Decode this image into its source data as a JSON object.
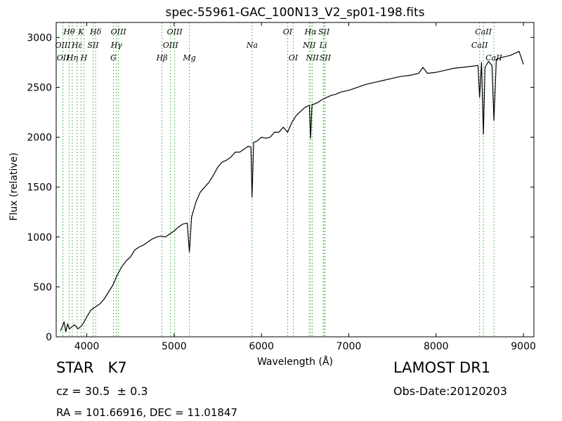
{
  "chart_data": {
    "type": "line",
    "title": "spec-55961-GAC_100N13_V2_sp01-198.fits",
    "xlabel": "Wavelength (Å)",
    "ylabel": "Flux (relative)",
    "xlim": [
      3650,
      9120
    ],
    "ylim": [
      0,
      3150
    ],
    "xticks": [
      4000,
      5000,
      6000,
      7000,
      8000,
      9000
    ],
    "yticks": [
      0,
      500,
      1000,
      1500,
      2000,
      2500,
      3000
    ],
    "grid": false,
    "line_color": "#000000",
    "marker_color": "#33aa33",
    "series": [
      {
        "x": [
          3700,
          3720,
          3740,
          3760,
          3780,
          3800,
          3830,
          3860,
          3900,
          3940,
          3970,
          4000,
          4050,
          4100,
          4150,
          4200,
          4250,
          4300,
          4350,
          4400,
          4450,
          4500,
          4550,
          4600,
          4650,
          4700,
          4750,
          4800,
          4850,
          4900,
          4950,
          5000,
          5050,
          5100,
          5150,
          5175,
          5200,
          5250,
          5300,
          5350,
          5400,
          5450,
          5500,
          5550,
          5600,
          5650,
          5700,
          5750,
          5800,
          5850,
          5880,
          5893,
          5910,
          5950,
          6000,
          6050,
          6100,
          6150,
          6200,
          6250,
          6300,
          6350,
          6400,
          6450,
          6500,
          6550,
          6563,
          6580,
          6600,
          6650,
          6700,
          6750,
          6800,
          6850,
          6900,
          6950,
          7000,
          7100,
          7200,
          7300,
          7400,
          7500,
          7600,
          7700,
          7800,
          7850,
          7900,
          8000,
          8100,
          8200,
          8300,
          8400,
          8480,
          8498,
          8520,
          8542,
          8560,
          8600,
          8640,
          8662,
          8690,
          8750,
          8800,
          8850,
          8900,
          8950,
          9000
        ],
        "y": [
          60,
          100,
          150,
          50,
          130,
          80,
          100,
          120,
          80,
          110,
          150,
          200,
          270,
          300,
          330,
          380,
          450,
          520,
          620,
          700,
          760,
          800,
          870,
          900,
          920,
          950,
          980,
          1000,
          1010,
          1000,
          1030,
          1060,
          1100,
          1130,
          1140,
          850,
          1200,
          1350,
          1450,
          1500,
          1550,
          1620,
          1700,
          1750,
          1770,
          1800,
          1850,
          1850,
          1880,
          1910,
          1900,
          1400,
          1950,
          1960,
          2000,
          1990,
          2000,
          2050,
          2050,
          2100,
          2050,
          2150,
          2220,
          2260,
          2300,
          2320,
          1990,
          2330,
          2330,
          2350,
          2380,
          2400,
          2420,
          2430,
          2450,
          2460,
          2470,
          2500,
          2530,
          2550,
          2570,
          2590,
          2610,
          2620,
          2640,
          2700,
          2640,
          2650,
          2670,
          2690,
          2700,
          2710,
          2720,
          2400,
          2750,
          2030,
          2700,
          2760,
          2720,
          2170,
          2780,
          2800,
          2810,
          2820,
          2840,
          2860,
          2730
        ]
      }
    ],
    "line_markers": [
      {
        "label": "OII",
        "x": 3727,
        "row": 3
      },
      {
        "label": "OIII",
        "x": 3727,
        "row": 2
      },
      {
        "label": "Hθ",
        "x": 3798,
        "row": 1
      },
      {
        "label": "Hη",
        "x": 3835,
        "row": 3
      },
      {
        "label": "Hε",
        "x": 3889,
        "row": 2
      },
      {
        "label": "K",
        "x": 3934,
        "row": 1
      },
      {
        "label": "H",
        "x": 3968,
        "row": 3
      },
      {
        "label": "SII",
        "x": 4072,
        "row": 2
      },
      {
        "label": "Hδ",
        "x": 4101,
        "row": 1
      },
      {
        "label": "G",
        "x": 4305,
        "row": 3
      },
      {
        "label": "Hγ",
        "x": 4340,
        "row": 2
      },
      {
        "label": "OIII",
        "x": 4363,
        "row": 1
      },
      {
        "label": "Hβ",
        "x": 4861,
        "row": 3
      },
      {
        "label": "OIII",
        "x": 4959,
        "row": 2
      },
      {
        "label": "OIII",
        "x": 5007,
        "row": 1
      },
      {
        "label": "Mg",
        "x": 5175,
        "row": 3
      },
      {
        "label": "Na",
        "x": 5893,
        "row": 2
      },
      {
        "label": "OI",
        "x": 6300,
        "row": 1
      },
      {
        "label": "OI",
        "x": 6364,
        "row": 3
      },
      {
        "label": "NII",
        "x": 6548,
        "row": 2
      },
      {
        "label": "Hα",
        "x": 6563,
        "row": 1
      },
      {
        "label": "NII",
        "x": 6583,
        "row": 3
      },
      {
        "label": "Li",
        "x": 6708,
        "row": 2
      },
      {
        "label": "SII",
        "x": 6716,
        "row": 1
      },
      {
        "label": "SII",
        "x": 6731,
        "row": 3
      },
      {
        "label": "CaII",
        "x": 8498,
        "row": 2
      },
      {
        "label": "CaII",
        "x": 8542,
        "row": 1
      },
      {
        "label": "CaII",
        "x": 8662,
        "row": 3
      }
    ]
  },
  "footer": {
    "class_label": "STAR   K7",
    "survey_label": "LAMOST DR1",
    "cz_label": "cz = 30.5  ± 0.3",
    "obs_date_label": "Obs-Date:20120203",
    "radec_label": "RA = 101.66916, DEC = 11.01847"
  }
}
